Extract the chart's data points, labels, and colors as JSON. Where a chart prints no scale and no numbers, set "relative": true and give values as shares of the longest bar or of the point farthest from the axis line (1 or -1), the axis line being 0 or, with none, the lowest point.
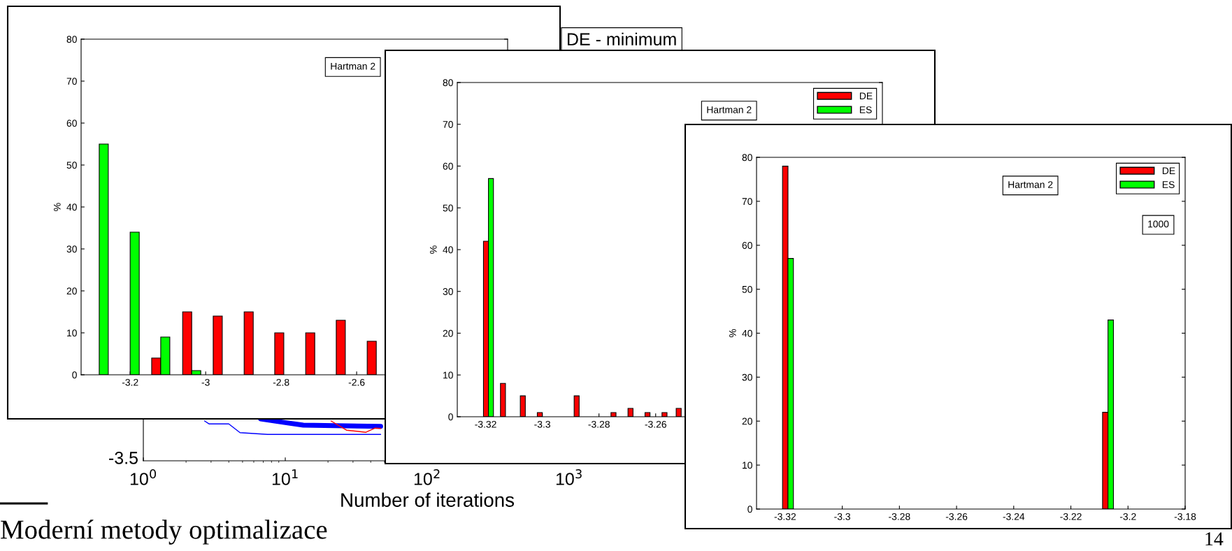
{
  "chart_data": [
    {
      "type": "line",
      "xlabel": "Number of iterations",
      "log": "x",
      "xlim": [
        1,
        10000
      ],
      "xticks": [
        {
          "value": 1,
          "label": "10$^{0}$"
        },
        {
          "value": 10,
          "label": "10$^{1}$"
        },
        {
          "value": 100,
          "label": "10$^{2}$"
        },
        {
          "value": 1000,
          "label": "10$^{3}$"
        }
      ],
      "relative": true,
      "series": [
        {
          "color": "#0000ff",
          "x": [
            2.7,
            2.9,
            4,
            4.8,
            7.5,
            47
          ],
          "values": [
            0.95,
            0.88,
            0.88,
            0.67,
            0.63,
            0.63
          ]
        },
        {
          "color": "#0000ff",
          "x": [
            6.7,
            10,
            13.4,
            47
          ],
          "values": [
            1,
            0.91,
            0.85,
            0.82
          ]
        },
        {
          "color": "#ff0000",
          "x": [
            21,
            27,
            37,
            43,
            47
          ],
          "values": [
            0.95,
            0.73,
            0.68,
            0.78,
            0.77
          ]
        }
      ],
      "annotations": [
        "Moderní metody optimalizace",
        "14",
        "-3.5",
        "DE - minimum"
      ]
    },
    {
      "type": "bar",
      "ylabel": "%",
      "x": [
        -3.282,
        -3.2,
        -3.119,
        -3.037,
        -2.956,
        -2.874,
        -2.793,
        -2.711,
        -2.63,
        -2.548
      ],
      "xlim": [
        -3.33,
        -2.2
      ],
      "xticks": [
        -3.2,
        -3,
        -2.8,
        -2.6
      ],
      "ylim": [
        0,
        80
      ],
      "yticks": [
        0,
        10,
        20,
        30,
        40,
        50,
        60,
        70,
        80
      ],
      "series": [
        {
          "color": "#ff0000",
          "values": [
            0,
            0,
            4,
            15,
            14,
            15,
            10,
            10,
            13,
            8
          ]
        },
        {
          "color": "#00ff00",
          "values": [
            55,
            34,
            9,
            1,
            0,
            0,
            0,
            0,
            0,
            0
          ]
        }
      ],
      "annotations": [
        "Hartman 2"
      ]
    },
    {
      "type": "bar",
      "ylabel": "%",
      "x": [
        -3.319,
        -3.313,
        -3.306,
        -3.3,
        -3.294,
        -3.287,
        -3.281,
        -3.274,
        -3.268,
        -3.262,
        -3.256,
        -3.251
      ],
      "xlim": [
        -3.33,
        -3.18
      ],
      "xticks": [
        -3.32,
        -3.3,
        -3.28,
        -3.26
      ],
      "ylim": [
        0,
        80
      ],
      "yticks": [
        0,
        10,
        20,
        30,
        40,
        50,
        60,
        70,
        80
      ],
      "legend": "top right",
      "series": [
        {
          "name": "DE",
          "color": "#ff0000",
          "values": [
            42,
            8,
            5,
            1,
            0,
            5,
            0,
            1,
            2,
            1,
            1,
            2
          ]
        },
        {
          "name": "ES",
          "color": "#00ff00",
          "values": [
            57,
            0,
            0,
            0,
            0,
            0,
            0,
            0,
            0,
            0,
            0,
            0
          ]
        }
      ],
      "annotations": [
        "Hartman 2"
      ]
    },
    {
      "type": "bar",
      "ylabel": "%",
      "x": [
        -3.319,
        -3.207
      ],
      "xlim": [
        -3.33,
        -3.18
      ],
      "xticks": [
        -3.32,
        -3.3,
        -3.28,
        -3.26,
        -3.24,
        -3.22,
        -3.2,
        -3.18
      ],
      "ylim": [
        0,
        80
      ],
      "yticks": [
        0,
        10,
        20,
        30,
        40,
        50,
        60,
        70,
        80
      ],
      "legend": "top right",
      "series": [
        {
          "name": "DE",
          "color": "#ff0000",
          "values": [
            78,
            22
          ]
        },
        {
          "name": "ES",
          "color": "#00ff00",
          "values": [
            57,
            43
          ]
        }
      ],
      "annotations": [
        "Hartman 2",
        "1000"
      ]
    }
  ]
}
